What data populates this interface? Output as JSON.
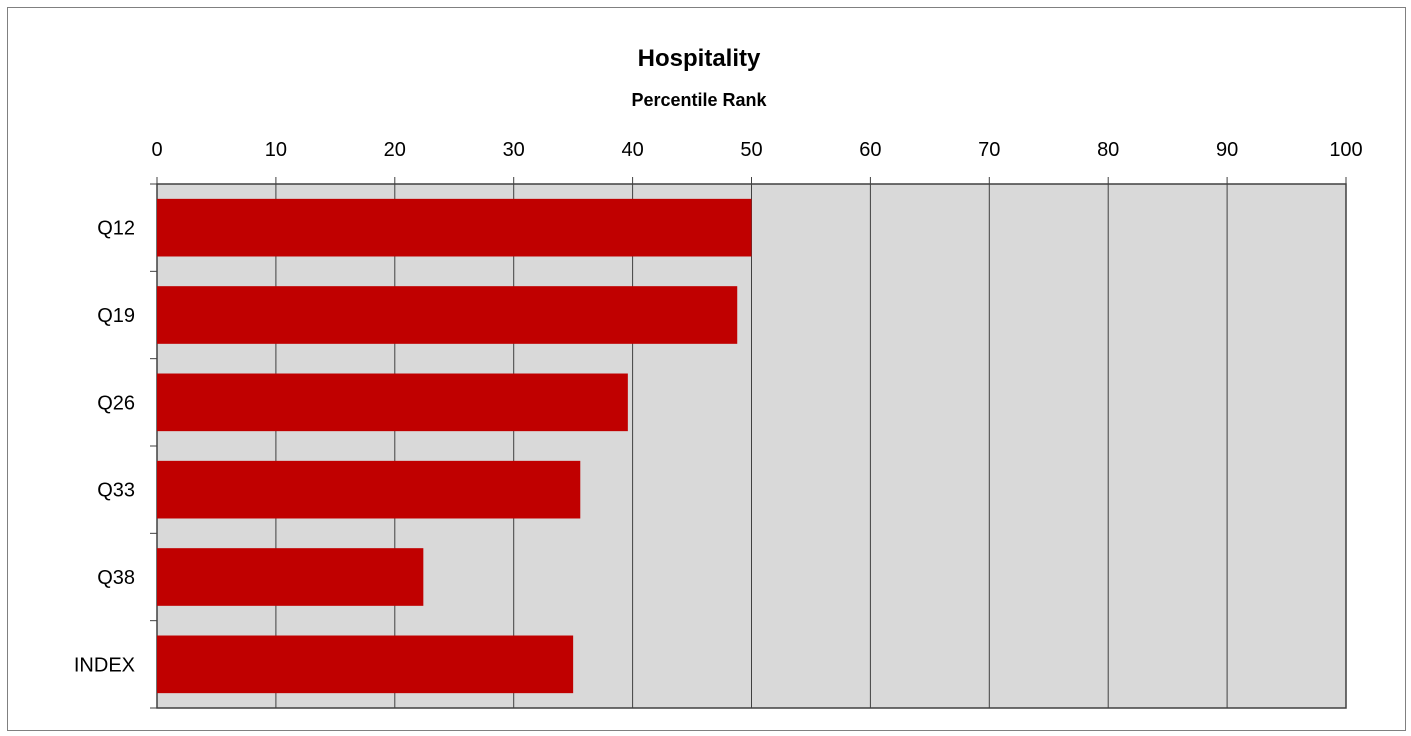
{
  "chart_data": {
    "type": "bar",
    "orientation": "horizontal",
    "title": "Hospitality",
    "subtitle": "Percentile Rank",
    "categories": [
      "Q12",
      "Q19",
      "Q26",
      "Q33",
      "Q38",
      "INDEX"
    ],
    "values": [
      50,
      48.8,
      39.6,
      35.6,
      22.4,
      35
    ],
    "xlim": [
      0,
      100
    ],
    "x_ticks": [
      "0",
      "10",
      "20",
      "30",
      "40",
      "50",
      "60",
      "70",
      "80",
      "90",
      "100"
    ],
    "x_axis_position": "top",
    "grid": true,
    "legend": "none",
    "colors": {
      "bar": "#c00000",
      "plot_background": "#d9d9d9",
      "grid": "#404040"
    }
  }
}
